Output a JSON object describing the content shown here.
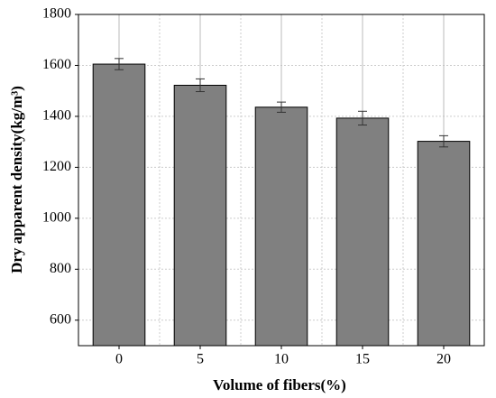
{
  "chart_data": {
    "type": "bar",
    "x_label": "Volume of fibers(%)",
    "y_label": "Dry apparent density(kg/m³)",
    "categories": [
      "0",
      "5",
      "10",
      "15",
      "20"
    ],
    "values": [
      1605,
      1522,
      1436,
      1393,
      1302
    ],
    "errors": [
      22,
      25,
      20,
      27,
      22
    ],
    "color": "#808080",
    "ylim": [
      500,
      1800
    ],
    "yticks": [
      600,
      800,
      1000,
      1200,
      1400,
      1600,
      1800
    ],
    "grid": true
  }
}
